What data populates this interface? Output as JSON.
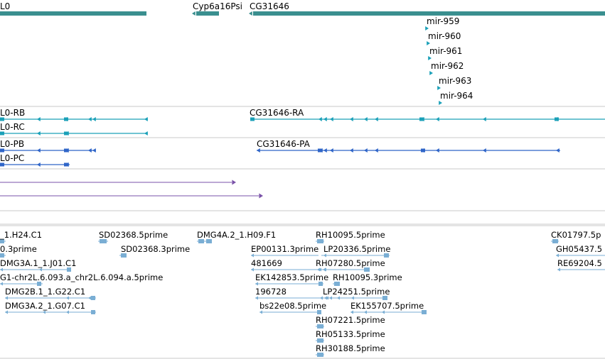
{
  "colors": {
    "gene": "#3a8f8f",
    "transcript_a": "#1aa0b8",
    "transcript_b": "#2f65c8",
    "alignment": "#7a52a8",
    "est": "#7aaed4",
    "divider": "#c8c8c8"
  },
  "gene_track": {
    "genes": [
      "L0",
      "Cyp6a16Psi",
      "CG31646"
    ],
    "mirnas": [
      "mir-959",
      "mir-960",
      "mir-961",
      "mir-962",
      "mir-963",
      "mir-964"
    ]
  },
  "transcripts": {
    "names": [
      "L0-RB",
      "L0-RC",
      "CG31646-RA"
    ]
  },
  "proteins": {
    "names": [
      "L0-PB",
      "L0-PC",
      "CG31646-PA"
    ]
  },
  "est_track": {
    "names": [
      "_1.H24.C1",
      "SD02368.5prime",
      "DMG4A.2_1.H09.F1",
      "RH10095.5prime",
      "CK01797.5p",
      "0.3prime",
      "SD02368.3prime",
      "EP00131.3prime",
      "LP20336.5prime",
      "GH05437.5",
      "DMG3A.1_1.J01.C1",
      "481669",
      "RH07280.5prime",
      "RE69204.5",
      "G1-chr2L.6.093.a_chr2L.6.094.a.5prime",
      "EK142853.5prime",
      "RH10095.3prime",
      "DMG2B.1_1.G22.C1",
      "196728",
      "LP24251.5prime",
      "DMG3A.2_1.G07.C1",
      "bs22e08.5prime",
      "EK155707.5prime",
      "RH07221.5prime",
      "RH05133.5prime",
      "RH30188.5prime"
    ]
  }
}
